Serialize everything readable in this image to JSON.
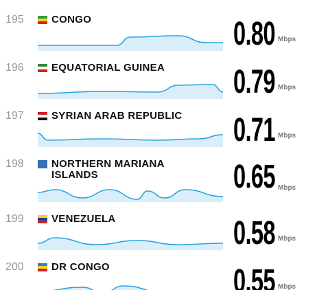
{
  "rows": [
    {
      "rank": "195",
      "country": "CONGO",
      "speed": "0.80",
      "unit": "Mbps"
    },
    {
      "rank": "196",
      "country": "EQUATORIAL GUINEA",
      "speed": "0.79",
      "unit": "Mbps"
    },
    {
      "rank": "197",
      "country": "SYRIAN ARAB REPUBLIC",
      "speed": "0.71",
      "unit": "Mbps"
    },
    {
      "rank": "198",
      "country": "NORTHERN MARIANA ISLANDS",
      "speed": "0.65",
      "unit": "Mbps"
    },
    {
      "rank": "199",
      "country": "VENEZUELA",
      "speed": "0.58",
      "unit": "Mbps"
    },
    {
      "rank": "200",
      "country": "DR CONGO",
      "speed": "0.55",
      "unit": "Mbps"
    }
  ]
}
